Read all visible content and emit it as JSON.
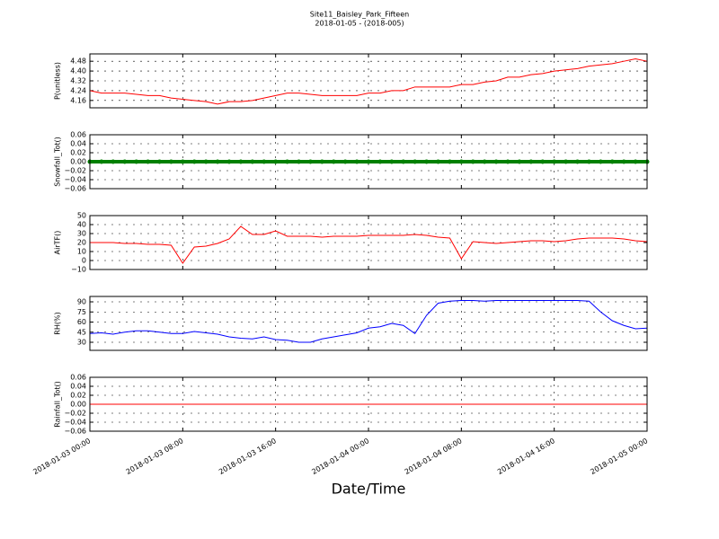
{
  "chart_data": [
    {
      "type": "line",
      "title": "Site11_Baisley_Park_Fifteen",
      "subtitle": "2018-01-05 - (2018-005)",
      "ylabel": "P(unitless)",
      "x": [
        "2018-01-03 00:00",
        "2018-01-03 01:00",
        "2018-01-03 02:00",
        "2018-01-03 03:00",
        "2018-01-03 04:00",
        "2018-01-03 05:00",
        "2018-01-03 06:00",
        "2018-01-03 07:00",
        "2018-01-03 08:00",
        "2018-01-03 09:00",
        "2018-01-03 10:00",
        "2018-01-03 11:00",
        "2018-01-03 12:00",
        "2018-01-03 13:00",
        "2018-01-03 14:00",
        "2018-01-03 15:00",
        "2018-01-03 16:00",
        "2018-01-03 17:00",
        "2018-01-03 18:00",
        "2018-01-03 19:00",
        "2018-01-03 20:00",
        "2018-01-03 21:00",
        "2018-01-03 22:00",
        "2018-01-03 23:00",
        "2018-01-04 00:00",
        "2018-01-04 01:00",
        "2018-01-04 02:00",
        "2018-01-04 03:00",
        "2018-01-04 04:00",
        "2018-01-04 05:00",
        "2018-01-04 06:00",
        "2018-01-04 07:00",
        "2018-01-04 08:00",
        "2018-01-04 09:00",
        "2018-01-04 10:00",
        "2018-01-04 11:00",
        "2018-01-04 12:00",
        "2018-01-04 13:00",
        "2018-01-04 14:00",
        "2018-01-04 15:00",
        "2018-01-04 16:00",
        "2018-01-04 17:00",
        "2018-01-04 18:00",
        "2018-01-04 19:00",
        "2018-01-04 20:00",
        "2018-01-04 21:00",
        "2018-01-04 22:00",
        "2018-01-04 23:00",
        "2018-01-05 00:00"
      ],
      "values": [
        4.24,
        4.22,
        4.22,
        4.22,
        4.21,
        4.2,
        4.2,
        4.18,
        4.17,
        4.16,
        4.15,
        4.13,
        4.15,
        4.15,
        4.16,
        4.18,
        4.2,
        4.22,
        4.22,
        4.21,
        4.2,
        4.2,
        4.2,
        4.2,
        4.22,
        4.22,
        4.24,
        4.24,
        4.27,
        4.27,
        4.27,
        4.27,
        4.29,
        4.29,
        4.31,
        4.32,
        4.35,
        4.35,
        4.37,
        4.38,
        4.4,
        4.41,
        4.42,
        4.44,
        4.45,
        4.46,
        4.48,
        4.5,
        4.48
      ],
      "color": "#ff0000",
      "ylim": [
        4.1,
        4.54
      ],
      "yticks": [
        4.16,
        4.24,
        4.32,
        {
          "value": 4.4,
          "label": "4.40"
        },
        4.48
      ],
      "grid": true
    },
    {
      "type": "scatter",
      "ylabel": "Snowfall_Tot()",
      "x": [
        "2018-01-03 00:00",
        "2018-01-03 01:00",
        "2018-01-03 02:00",
        "2018-01-03 03:00",
        "2018-01-03 04:00",
        "2018-01-03 05:00",
        "2018-01-03 06:00",
        "2018-01-03 07:00",
        "2018-01-03 08:00",
        "2018-01-03 09:00",
        "2018-01-03 10:00",
        "2018-01-03 11:00",
        "2018-01-03 12:00",
        "2018-01-03 13:00",
        "2018-01-03 14:00",
        "2018-01-03 15:00",
        "2018-01-03 16:00",
        "2018-01-03 17:00",
        "2018-01-03 18:00",
        "2018-01-03 19:00",
        "2018-01-03 20:00",
        "2018-01-03 21:00",
        "2018-01-03 22:00",
        "2018-01-03 23:00",
        "2018-01-04 00:00",
        "2018-01-04 01:00",
        "2018-01-04 02:00",
        "2018-01-04 03:00",
        "2018-01-04 04:00",
        "2018-01-04 05:00",
        "2018-01-04 06:00",
        "2018-01-04 07:00",
        "2018-01-04 08:00",
        "2018-01-04 09:00",
        "2018-01-04 10:00",
        "2018-01-04 11:00",
        "2018-01-04 12:00",
        "2018-01-04 13:00",
        "2018-01-04 14:00",
        "2018-01-04 15:00",
        "2018-01-04 16:00",
        "2018-01-04 17:00",
        "2018-01-04 18:00",
        "2018-01-04 19:00",
        "2018-01-04 20:00",
        "2018-01-04 21:00",
        "2018-01-04 22:00",
        "2018-01-04 23:00",
        "2018-01-05 00:00"
      ],
      "values": [
        0,
        0,
        0,
        0,
        0,
        0,
        0,
        0,
        0,
        0,
        0,
        0,
        0,
        0,
        0,
        0,
        0,
        0,
        0,
        0,
        0,
        0,
        0,
        0,
        0,
        0,
        0,
        0,
        0,
        0,
        0,
        0,
        0,
        0,
        0,
        0,
        0,
        0,
        0,
        0,
        0,
        0,
        0,
        0,
        0,
        0,
        0,
        0,
        0
      ],
      "color": "#008000",
      "ylim": [
        -0.06,
        0.06
      ],
      "yticks": [
        {
          "value": -0.06,
          "label": "−0.06"
        },
        {
          "value": -0.04,
          "label": "−0.04"
        },
        {
          "value": -0.02,
          "label": "−0.02"
        },
        {
          "value": 0,
          "label": "0.00"
        },
        0.02,
        0.04,
        0.06
      ],
      "grid": true
    },
    {
      "type": "line",
      "ylabel": "AirTF()",
      "x": [
        "2018-01-03 00:00",
        "2018-01-03 01:00",
        "2018-01-03 02:00",
        "2018-01-03 03:00",
        "2018-01-03 04:00",
        "2018-01-03 05:00",
        "2018-01-03 06:00",
        "2018-01-03 07:00",
        "2018-01-03 08:00",
        "2018-01-03 09:00",
        "2018-01-03 10:00",
        "2018-01-03 11:00",
        "2018-01-03 12:00",
        "2018-01-03 13:00",
        "2018-01-03 14:00",
        "2018-01-03 15:00",
        "2018-01-03 16:00",
        "2018-01-03 17:00",
        "2018-01-03 18:00",
        "2018-01-03 19:00",
        "2018-01-03 20:00",
        "2018-01-03 21:00",
        "2018-01-03 22:00",
        "2018-01-03 23:00",
        "2018-01-04 00:00",
        "2018-01-04 01:00",
        "2018-01-04 02:00",
        "2018-01-04 03:00",
        "2018-01-04 04:00",
        "2018-01-04 05:00",
        "2018-01-04 06:00",
        "2018-01-04 07:00",
        "2018-01-04 08:00",
        "2018-01-04 09:00",
        "2018-01-04 10:00",
        "2018-01-04 11:00",
        "2018-01-04 12:00",
        "2018-01-04 13:00",
        "2018-01-04 14:00",
        "2018-01-04 15:00",
        "2018-01-04 16:00",
        "2018-01-04 17:00",
        "2018-01-04 18:00",
        "2018-01-04 19:00",
        "2018-01-04 20:00",
        "2018-01-04 21:00",
        "2018-01-04 22:00",
        "2018-01-04 23:00",
        "2018-01-05 00:00"
      ],
      "values": [
        20,
        20,
        20,
        19,
        19,
        18,
        18,
        17,
        -3,
        15,
        16,
        19,
        24,
        38,
        29,
        29,
        33,
        27,
        27,
        27,
        26,
        27,
        27,
        27,
        28,
        28,
        28,
        28,
        29,
        28,
        26,
        25,
        2,
        21,
        20,
        19,
        20,
        21,
        22,
        22,
        21,
        22,
        24,
        25,
        25,
        25,
        24,
        22,
        21
      ],
      "color": "#ff0000",
      "ylim": [
        -10,
        50
      ],
      "yticks": [
        {
          "value": -10,
          "label": "−10"
        },
        0,
        10,
        20,
        30,
        40,
        50
      ],
      "grid": true
    },
    {
      "type": "line",
      "ylabel": "RH(%)",
      "x": [
        "2018-01-03 00:00",
        "2018-01-03 01:00",
        "2018-01-03 02:00",
        "2018-01-03 03:00",
        "2018-01-03 04:00",
        "2018-01-03 05:00",
        "2018-01-03 06:00",
        "2018-01-03 07:00",
        "2018-01-03 08:00",
        "2018-01-03 09:00",
        "2018-01-03 10:00",
        "2018-01-03 11:00",
        "2018-01-03 12:00",
        "2018-01-03 13:00",
        "2018-01-03 14:00",
        "2018-01-03 15:00",
        "2018-01-03 16:00",
        "2018-01-03 17:00",
        "2018-01-03 18:00",
        "2018-01-03 19:00",
        "2018-01-03 20:00",
        "2018-01-03 21:00",
        "2018-01-03 22:00",
        "2018-01-03 23:00",
        "2018-01-04 00:00",
        "2018-01-04 01:00",
        "2018-01-04 02:00",
        "2018-01-04 03:00",
        "2018-01-04 04:00",
        "2018-01-04 05:00",
        "2018-01-04 06:00",
        "2018-01-04 07:00",
        "2018-01-04 08:00",
        "2018-01-04 09:00",
        "2018-01-04 10:00",
        "2018-01-04 11:00",
        "2018-01-04 12:00",
        "2018-01-04 13:00",
        "2018-01-04 14:00",
        "2018-01-04 15:00",
        "2018-01-04 16:00",
        "2018-01-04 17:00",
        "2018-01-04 18:00",
        "2018-01-04 19:00",
        "2018-01-04 20:00",
        "2018-01-04 21:00",
        "2018-01-04 22:00",
        "2018-01-04 23:00",
        "2018-01-05 00:00"
      ],
      "values": [
        43,
        44,
        42,
        45,
        47,
        47,
        45,
        43,
        43,
        46,
        44,
        42,
        38,
        36,
        35,
        38,
        34,
        33,
        30,
        30,
        35,
        38,
        41,
        44,
        51,
        53,
        58,
        55,
        43,
        70,
        88,
        91,
        92,
        92,
        91,
        92,
        92,
        92,
        92,
        92,
        92,
        92,
        92,
        91,
        75,
        62,
        55,
        50,
        51
      ],
      "color": "#0000ff",
      "ylim": [
        18,
        98
      ],
      "yticks": [
        30,
        45,
        60,
        75,
        90
      ],
      "grid": true
    },
    {
      "type": "line",
      "ylabel": "Rainfall_Tot()",
      "xlabel": "Date/Time",
      "x": [
        "2018-01-03 00:00",
        "2018-01-03 01:00",
        "2018-01-03 02:00",
        "2018-01-03 03:00",
        "2018-01-03 04:00",
        "2018-01-03 05:00",
        "2018-01-03 06:00",
        "2018-01-03 07:00",
        "2018-01-03 08:00",
        "2018-01-03 09:00",
        "2018-01-03 10:00",
        "2018-01-03 11:00",
        "2018-01-03 12:00",
        "2018-01-03 13:00",
        "2018-01-03 14:00",
        "2018-01-03 15:00",
        "2018-01-03 16:00",
        "2018-01-03 17:00",
        "2018-01-03 18:00",
        "2018-01-03 19:00",
        "2018-01-03 20:00",
        "2018-01-03 21:00",
        "2018-01-03 22:00",
        "2018-01-03 23:00",
        "2018-01-04 00:00",
        "2018-01-04 01:00",
        "2018-01-04 02:00",
        "2018-01-04 03:00",
        "2018-01-04 04:00",
        "2018-01-04 05:00",
        "2018-01-04 06:00",
        "2018-01-04 07:00",
        "2018-01-04 08:00",
        "2018-01-04 09:00",
        "2018-01-04 10:00",
        "2018-01-04 11:00",
        "2018-01-04 12:00",
        "2018-01-04 13:00",
        "2018-01-04 14:00",
        "2018-01-04 15:00",
        "2018-01-04 16:00",
        "2018-01-04 17:00",
        "2018-01-04 18:00",
        "2018-01-04 19:00",
        "2018-01-04 20:00",
        "2018-01-04 21:00",
        "2018-01-04 22:00",
        "2018-01-04 23:00",
        "2018-01-05 00:00"
      ],
      "values": [
        0,
        0,
        0,
        0,
        0,
        0,
        0,
        0,
        0,
        0,
        0,
        0,
        0,
        0,
        0,
        0,
        0,
        0,
        0,
        0,
        0,
        0,
        0,
        0,
        0,
        0,
        0,
        0,
        0,
        0,
        0,
        0,
        0,
        0,
        0,
        0,
        0,
        0,
        0,
        0,
        0,
        0,
        0,
        0,
        0,
        0,
        0,
        0,
        0
      ],
      "color": "#ff0000",
      "ylim": [
        -0.06,
        0.06
      ],
      "yticks": [
        {
          "value": -0.06,
          "label": "−0.06"
        },
        {
          "value": -0.04,
          "label": "−0.04"
        },
        {
          "value": -0.02,
          "label": "−0.02"
        },
        {
          "value": 0,
          "label": "0.00"
        },
        0.02,
        0.04,
        0.06
      ],
      "grid": true,
      "xlim": [
        "2018-01-03 00:00",
        "2018-01-05 00:00"
      ],
      "xticks": [
        "2018-01-03 00:00",
        "2018-01-03 08:00",
        "2018-01-03 16:00",
        "2018-01-04 00:00",
        "2018-01-04 08:00",
        "2018-01-04 16:00",
        "2018-01-05 00:00"
      ]
    }
  ]
}
